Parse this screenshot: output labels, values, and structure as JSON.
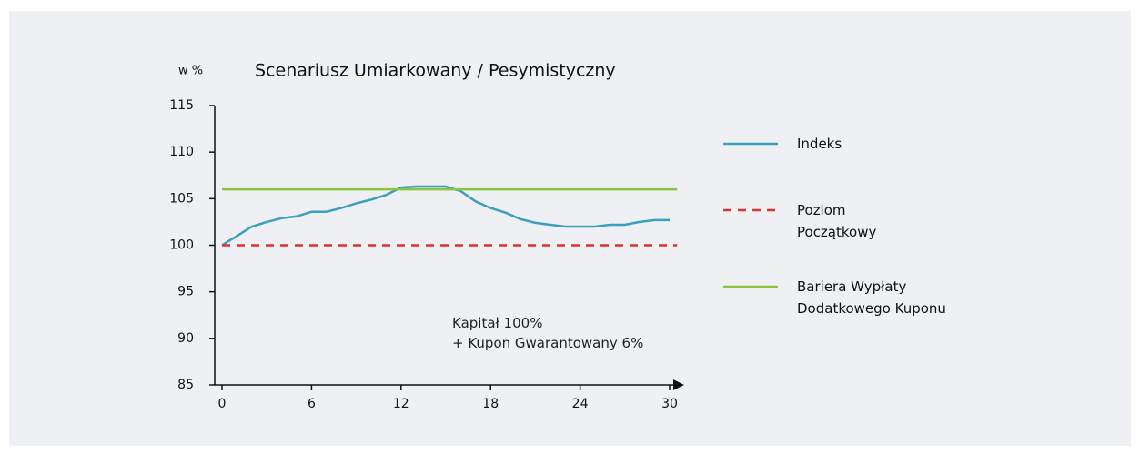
{
  "chart_data": {
    "type": "line",
    "title": "Scenariusz  Umiarkowany / Pesymistyczny",
    "y_label": "w %",
    "annotation": [
      "Kapitał 100%",
      "+ Kupon Gwarantowany 6%"
    ],
    "xlim": [
      0,
      30
    ],
    "ylim": [
      85,
      115
    ],
    "xticks": [
      0,
      6,
      12,
      18,
      24,
      30
    ],
    "yticks": [
      85,
      90,
      95,
      100,
      105,
      110,
      115
    ],
    "series": [
      {
        "name": "Indeks",
        "color": "#3a9fc0",
        "dash": false,
        "x": [
          0,
          1,
          2,
          3,
          4,
          5,
          6,
          7,
          8,
          9,
          10,
          11,
          12,
          13,
          14,
          15,
          16,
          17,
          18,
          19,
          20,
          21,
          22,
          23,
          24,
          25,
          26,
          27,
          28,
          29,
          30
        ],
        "values": [
          100,
          101,
          102,
          102.5,
          102.9,
          103.1,
          103.6,
          103.6,
          104,
          104.5,
          104.9,
          105.4,
          106.2,
          106.3,
          106.3,
          106.3,
          105.8,
          104.7,
          104,
          103.5,
          102.8,
          102.4,
          102.2,
          102,
          102,
          102,
          102.2,
          102.2,
          102.5,
          102.7,
          102.7
        ]
      },
      {
        "name": "Poziom Początkowy",
        "color": "#e2302a",
        "dash": true,
        "x": [
          0,
          30.5
        ],
        "values": [
          100,
          100
        ]
      },
      {
        "name": "Bariera Wypłaty Dodatkowego Kuponu",
        "color": "#8cc63f",
        "dash": false,
        "x": [
          0,
          30.5
        ],
        "values": [
          106,
          106
        ]
      }
    ]
  }
}
